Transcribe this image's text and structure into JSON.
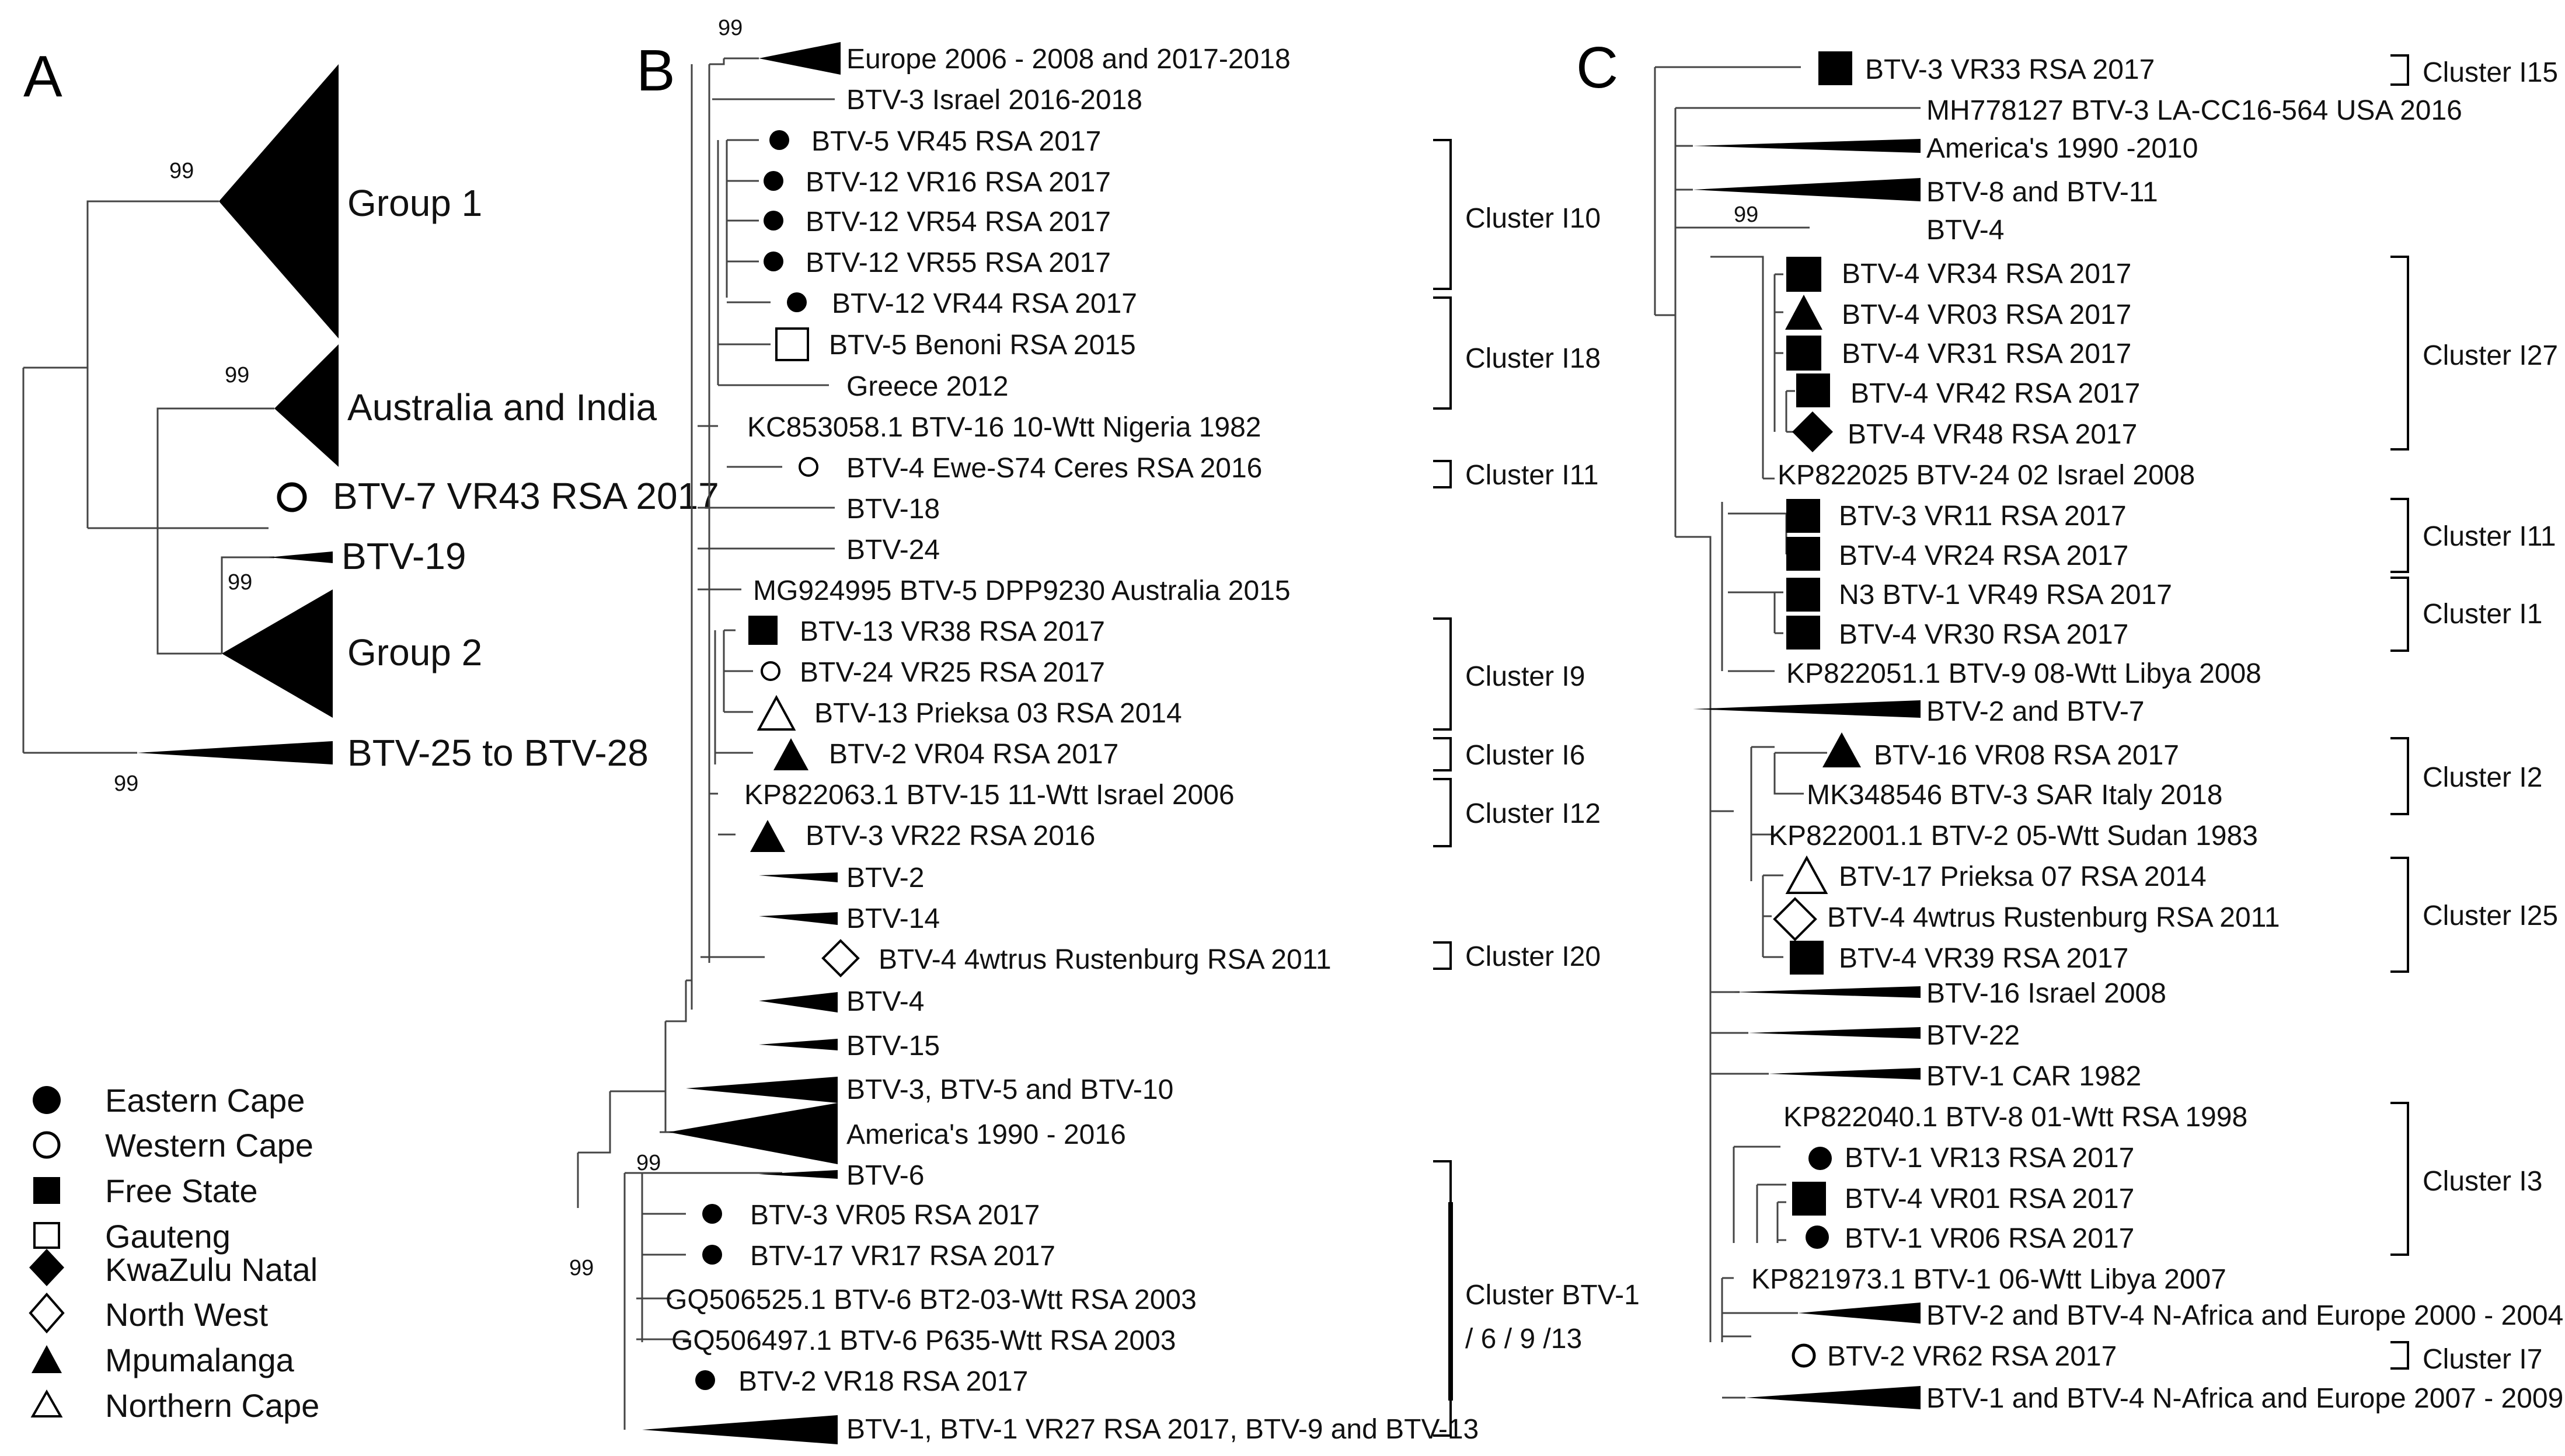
{
  "panels": {
    "a": "A",
    "b": "B",
    "c": "C"
  },
  "bootstrap": "99",
  "panelA": {
    "group1": "Group 1",
    "aus_india": "Australia and India",
    "btv7": "BTV-7 VR43 RSA 2017",
    "btv19": "BTV-19",
    "group2": "Group 2",
    "btv25_28": "BTV-25 to BTV-28"
  },
  "legend": [
    {
      "symbol": "filled-circle",
      "label": "Eastern Cape"
    },
    {
      "symbol": "open-circle",
      "label": "Western Cape"
    },
    {
      "symbol": "filled-square",
      "label": "Free State"
    },
    {
      "symbol": "open-square",
      "label": "Gauteng"
    },
    {
      "symbol": "filled-diamond",
      "label": "KwaZulu Natal"
    },
    {
      "symbol": "open-diamond",
      "label": "North West"
    },
    {
      "symbol": "filled-triangle",
      "label": "Mpumalanga"
    },
    {
      "symbol": "open-triangle",
      "label": "Northern Cape"
    }
  ],
  "panelB": {
    "leaves": [
      "Europe 2006 - 2008 and 2017-2018",
      "BTV-3 Israel 2016-2018",
      "BTV-5 VR45 RSA 2017",
      "BTV-12 VR16 RSA 2017",
      "BTV-12 VR54 RSA 2017",
      "BTV-12 VR55 RSA 2017",
      "BTV-12 VR44 RSA 2017",
      "BTV-5 Benoni RSA 2015",
      "Greece 2012",
      "KC853058.1 BTV-16 10-Wtt Nigeria 1982",
      "BTV-4 Ewe-S74 Ceres RSA 2016",
      "BTV-18",
      "BTV-24",
      "MG924995 BTV-5 DPP9230 Australia 2015",
      "BTV-13 VR38 RSA 2017",
      "BTV-24 VR25 RSA 2017",
      "BTV-13 Prieksa 03 RSA 2014",
      "BTV-2 VR04 RSA 2017",
      "KP822063.1 BTV-15 11-Wtt Israel 2006",
      "BTV-3 VR22 RSA 2016",
      "BTV-2",
      "BTV-14",
      "BTV-4 4wtrus Rustenburg RSA 2011",
      "BTV-4",
      "BTV-15",
      "BTV-3, BTV-5 and BTV-10",
      "America's 1990 - 2016",
      "BTV-6",
      "BTV-3 VR05 RSA 2017",
      "BTV-17 VR17 RSA 2017",
      "GQ506525.1 BTV-6 BT2-03-Wtt RSA 2003",
      "GQ506497.1 BTV-6 P635-Wtt RSA 2003",
      "BTV-2 VR18 RSA 2017",
      "BTV-1, BTV-1 VR27 RSA 2017, BTV-9 and BTV-13"
    ],
    "clusters": [
      "Cluster I10",
      "Cluster I18",
      "Cluster I11",
      "Cluster I9",
      "Cluster I6",
      "Cluster I12",
      "Cluster I20",
      "Cluster BTV-1",
      "/ 6 / 9 /13"
    ]
  },
  "panelC": {
    "leaves": [
      "BTV-3 VR33 RSA 2017",
      "MH778127 BTV-3 LA-CC16-564 USA 2016",
      "America's 1990 -2010",
      "BTV-8 and BTV-11",
      "BTV-4",
      "BTV-4 VR34 RSA 2017",
      "BTV-4 VR03 RSA 2017",
      "BTV-4 VR31 RSA 2017",
      "BTV-4 VR42 RSA 2017",
      "BTV-4 VR48 RSA 2017",
      "KP822025 BTV-24 02 Israel 2008",
      "BTV-3 VR11 RSA 2017",
      "BTV-4 VR24 RSA 2017",
      "N3 BTV-1 VR49 RSA 2017",
      "BTV-4 VR30 RSA 2017",
      "KP822051.1 BTV-9 08-Wtt Libya 2008",
      "BTV-2 and BTV-7",
      "BTV-16 VR08 RSA 2017",
      "MK348546 BTV-3 SAR Italy 2018",
      "KP822001.1 BTV-2 05-Wtt Sudan 1983",
      "BTV-17 Prieksa 07 RSA 2014",
      "BTV-4 4wtrus Rustenburg RSA 2011",
      "BTV-4 VR39 RSA 2017",
      "BTV-16 Israel 2008",
      "BTV-22",
      "BTV-1 CAR 1982",
      "KP822040.1 BTV-8 01-Wtt RSA 1998",
      "BTV-1 VR13 RSA 2017",
      "BTV-4 VR01 RSA 2017",
      "BTV-1 VR06 RSA 2017",
      "KP821973.1 BTV-1 06-Wtt Libya 2007",
      "BTV-2 and BTV-4 N-Africa and Europe 2000 - 2004",
      "BTV-2 VR62 RSA 2017",
      "BTV-1 and BTV-4 N-Africa and Europe 2007 - 2009"
    ],
    "clusters": [
      "Cluster I15",
      "Cluster I27",
      "Cluster I11",
      "Cluster I1",
      "Cluster I2",
      "Cluster I25",
      "Cluster I3",
      "Cluster I7"
    ]
  }
}
